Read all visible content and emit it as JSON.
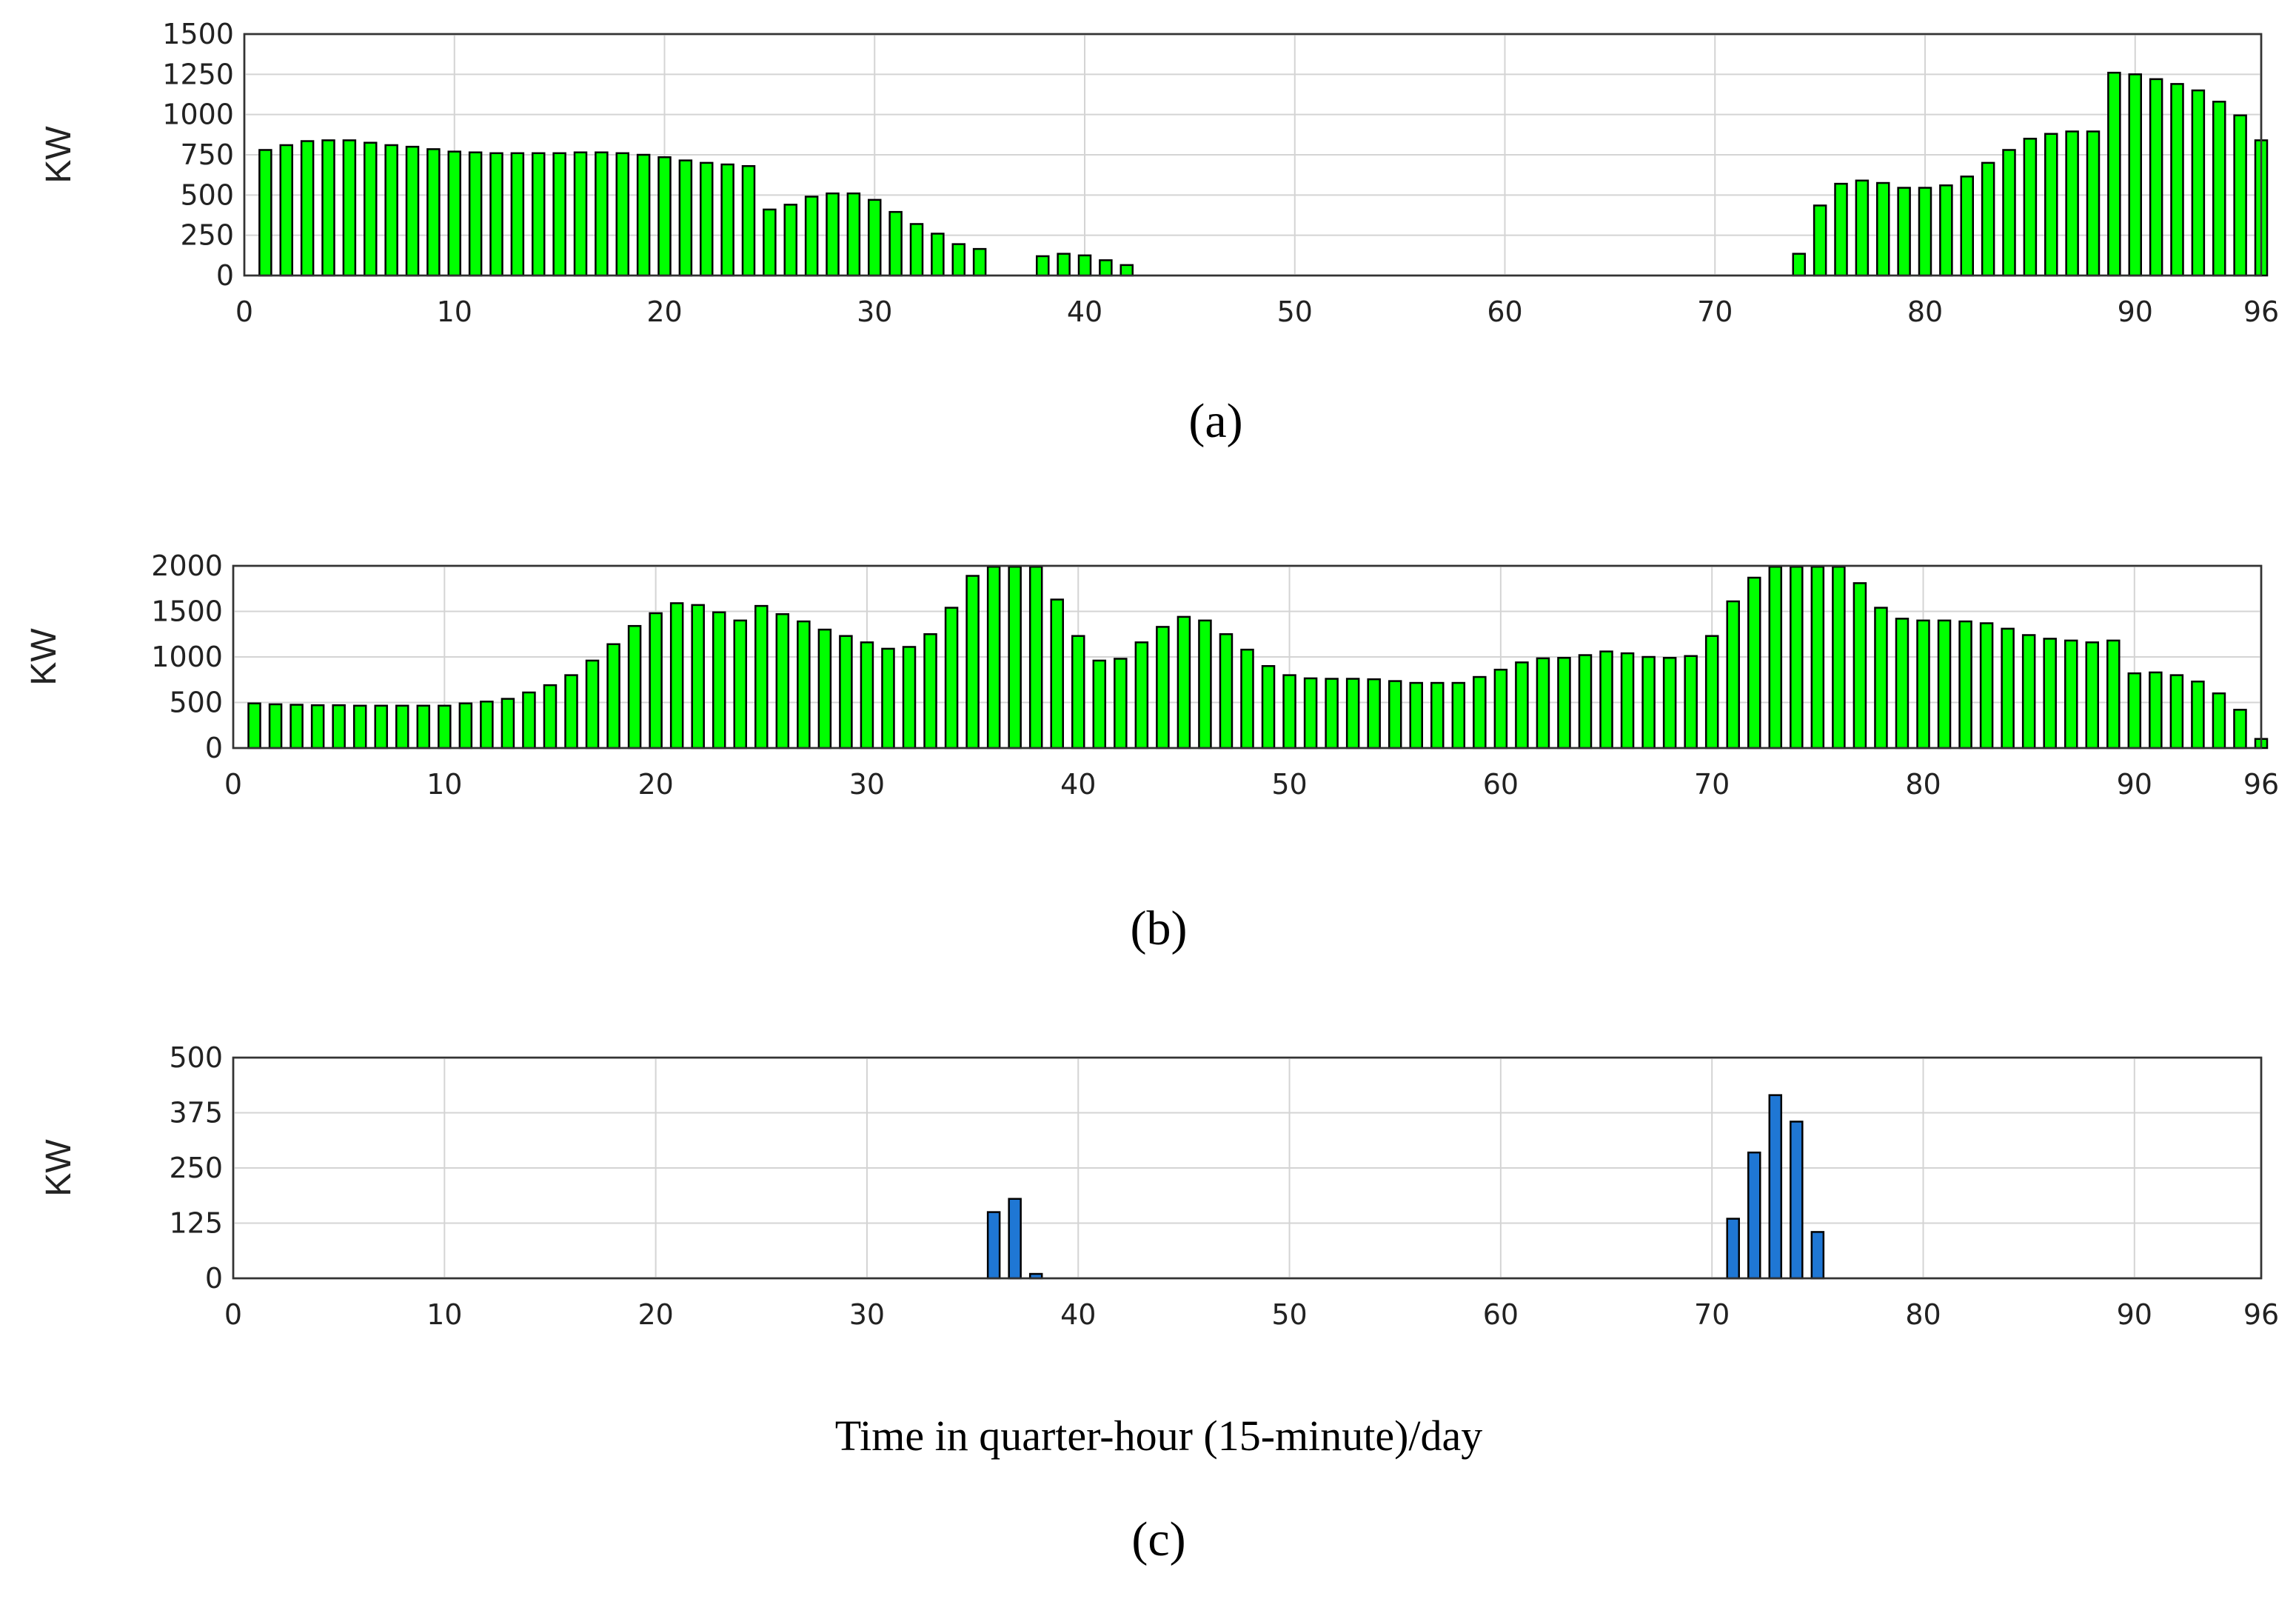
{
  "colors": {
    "bar_green": "#00ff00",
    "bar_blue": "#1f77d4",
    "grid": "#d4d4d4",
    "axis": "#333333"
  },
  "figure": {
    "xtitle": "Time in quarter-hour (15-minute)/day"
  },
  "chart_data": [
    {
      "type": "bar",
      "caption": "(a)",
      "ylabel": "KW",
      "xlim": [
        0,
        96
      ],
      "ylim": [
        0,
        1500
      ],
      "xticks": [
        0,
        10,
        20,
        30,
        40,
        50,
        60,
        70,
        80,
        90,
        96
      ],
      "yticks": [
        0,
        250,
        500,
        750,
        1000,
        1250,
        1500
      ],
      "grid": true,
      "color": "#00ff00",
      "x": [
        1,
        2,
        3,
        4,
        5,
        6,
        7,
        8,
        9,
        10,
        11,
        12,
        13,
        14,
        15,
        16,
        17,
        18,
        19,
        20,
        21,
        22,
        23,
        24,
        25,
        26,
        27,
        28,
        29,
        30,
        31,
        32,
        33,
        34,
        35,
        36,
        37,
        38,
        39,
        40,
        41,
        42,
        43,
        44,
        45,
        46,
        47,
        48,
        49,
        50,
        51,
        52,
        53,
        54,
        55,
        56,
        57,
        58,
        59,
        60,
        61,
        62,
        63,
        64,
        65,
        66,
        67,
        68,
        69,
        70,
        71,
        72,
        73,
        74,
        75,
        76,
        77,
        78,
        79,
        80,
        81,
        82,
        83,
        84,
        85,
        86,
        87,
        88,
        89,
        90,
        91,
        92,
        93,
        94,
        95,
        96
      ],
      "values": [
        780,
        810,
        835,
        840,
        840,
        825,
        810,
        800,
        785,
        770,
        765,
        760,
        760,
        760,
        760,
        765,
        765,
        760,
        750,
        735,
        715,
        700,
        690,
        680,
        410,
        440,
        490,
        510,
        510,
        470,
        395,
        320,
        260,
        195,
        165,
        0,
        0,
        120,
        135,
        125,
        95,
        65,
        0,
        0,
        0,
        0,
        0,
        0,
        0,
        0,
        0,
        0,
        0,
        0,
        0,
        0,
        0,
        0,
        0,
        0,
        0,
        0,
        0,
        0,
        0,
        0,
        0,
        0,
        0,
        0,
        0,
        0,
        0,
        135,
        435,
        570,
        590,
        575,
        545,
        545,
        560,
        615,
        700,
        780,
        850,
        880,
        895,
        895,
        1260,
        1250,
        1220,
        1190,
        1150,
        1080,
        995,
        840
      ]
    },
    {
      "type": "bar",
      "caption": "(b)",
      "ylabel": "KW",
      "xlim": [
        0,
        96
      ],
      "ylim": [
        0,
        2000
      ],
      "xticks": [
        0,
        10,
        20,
        30,
        40,
        50,
        60,
        70,
        80,
        90,
        96
      ],
      "yticks": [
        0,
        500,
        1000,
        1500,
        2000
      ],
      "grid": true,
      "color": "#00ff00",
      "x": [
        1,
        2,
        3,
        4,
        5,
        6,
        7,
        8,
        9,
        10,
        11,
        12,
        13,
        14,
        15,
        16,
        17,
        18,
        19,
        20,
        21,
        22,
        23,
        24,
        25,
        26,
        27,
        28,
        29,
        30,
        31,
        32,
        33,
        34,
        35,
        36,
        37,
        38,
        39,
        40,
        41,
        42,
        43,
        44,
        45,
        46,
        47,
        48,
        49,
        50,
        51,
        52,
        53,
        54,
        55,
        56,
        57,
        58,
        59,
        60,
        61,
        62,
        63,
        64,
        65,
        66,
        67,
        68,
        69,
        70,
        71,
        72,
        73,
        74,
        75,
        76,
        77,
        78,
        79,
        80,
        81,
        82,
        83,
        84,
        85,
        86,
        87,
        88,
        89,
        90,
        91,
        92,
        93,
        94,
        95,
        96
      ],
      "values": [
        490,
        480,
        475,
        470,
        470,
        465,
        465,
        465,
        465,
        465,
        490,
        510,
        540,
        610,
        690,
        800,
        960,
        1140,
        1340,
        1480,
        1590,
        1570,
        1490,
        1400,
        1560,
        1470,
        1390,
        1300,
        1230,
        1160,
        1090,
        1110,
        1250,
        1540,
        1890,
        1990,
        1990,
        1990,
        1630,
        1230,
        960,
        980,
        1160,
        1330,
        1440,
        1400,
        1250,
        1080,
        900,
        800,
        765,
        760,
        760,
        755,
        735,
        715,
        715,
        715,
        780,
        860,
        940,
        985,
        990,
        1020,
        1060,
        1040,
        1000,
        990,
        1010,
        1230,
        1610,
        1870,
        1990,
        1990,
        1990,
        1990,
        1810,
        1540,
        1420,
        1400,
        1400,
        1390,
        1370,
        1310,
        1240,
        1200,
        1180,
        1160,
        1180,
        820,
        830,
        800,
        730,
        600,
        420,
        100
      ]
    },
    {
      "type": "bar",
      "caption": "(c)",
      "ylabel": "KW",
      "xlim": [
        0,
        96
      ],
      "ylim": [
        0,
        500
      ],
      "xticks": [
        0,
        10,
        20,
        30,
        40,
        50,
        60,
        70,
        80,
        90,
        96
      ],
      "yticks": [
        0,
        125,
        250,
        375,
        500
      ],
      "grid": true,
      "color": "#1f77d4",
      "x": [
        36,
        37,
        38,
        71,
        72,
        73,
        74,
        75
      ],
      "values": [
        150,
        180,
        10,
        135,
        285,
        415,
        355,
        105
      ]
    }
  ]
}
